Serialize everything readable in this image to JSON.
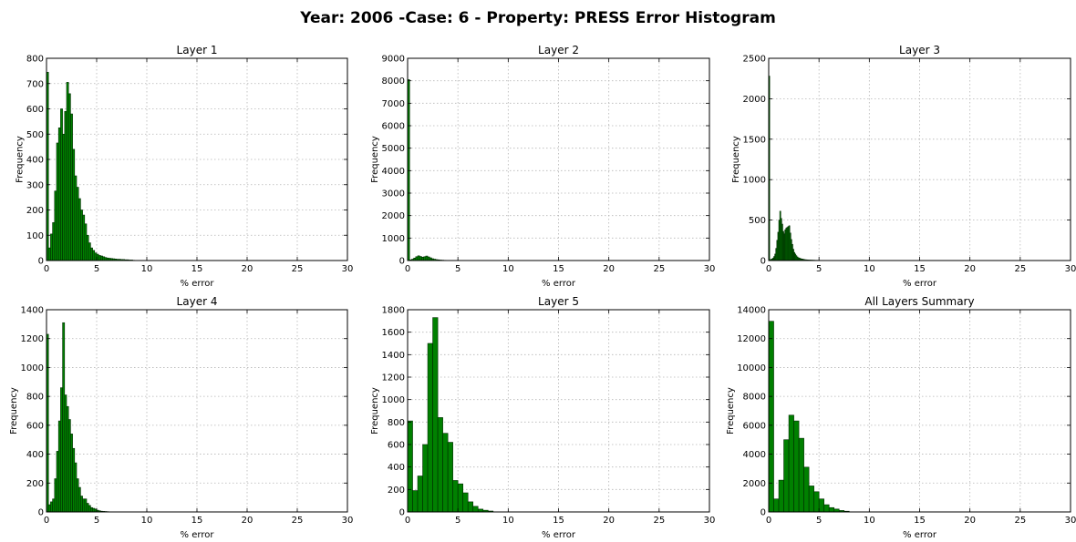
{
  "figure": {
    "suptitle": "Year: 2006 -Case: 6 - Property: PRESS Error Histogram"
  },
  "colors": {
    "bar_fill": "#008000",
    "bar_edge": "#002a00",
    "grid": "#b5b5b5",
    "frame": "#000000"
  },
  "chart_data": [
    {
      "type": "bar",
      "title": "Layer 1",
      "xlabel": "% error",
      "ylabel": "Frequency",
      "xlim": [
        0,
        30
      ],
      "ylim": [
        0,
        800
      ],
      "xticks": [
        0,
        5,
        10,
        15,
        20,
        25,
        30
      ],
      "yticks": [
        0,
        100,
        200,
        300,
        400,
        500,
        600,
        700,
        800
      ],
      "grid": true,
      "bin_width": 0.2,
      "x": [
        0.0,
        0.2,
        0.4,
        0.6,
        0.8,
        1.0,
        1.2,
        1.4,
        1.6,
        1.8,
        2.0,
        2.2,
        2.4,
        2.6,
        2.8,
        3.0,
        3.2,
        3.4,
        3.6,
        3.8,
        4.0,
        4.2,
        4.4,
        4.6,
        4.8,
        5.0,
        5.2,
        5.4,
        5.6,
        5.8,
        6.0,
        6.2,
        6.4,
        6.6,
        6.8,
        7.0,
        7.2,
        7.4,
        7.6,
        7.8,
        8.0,
        8.2,
        8.4,
        8.6
      ],
      "values": [
        745,
        50,
        105,
        150,
        275,
        465,
        525,
        600,
        500,
        590,
        705,
        660,
        580,
        440,
        335,
        290,
        245,
        200,
        180,
        145,
        100,
        70,
        50,
        40,
        30,
        25,
        20,
        18,
        15,
        12,
        10,
        9,
        8,
        7,
        6,
        5,
        5,
        4,
        4,
        3,
        3,
        2,
        2,
        1
      ]
    },
    {
      "type": "bar",
      "title": "Layer 2",
      "xlabel": "% error",
      "ylabel": "Frequency",
      "xlim": [
        0,
        30
      ],
      "ylim": [
        0,
        9000
      ],
      "xticks": [
        0,
        5,
        10,
        15,
        20,
        25,
        30
      ],
      "yticks": [
        0,
        1000,
        2000,
        3000,
        4000,
        5000,
        6000,
        7000,
        8000,
        9000
      ],
      "grid": true,
      "bin_width": 0.2,
      "x": [
        0.0,
        0.2,
        0.4,
        0.6,
        0.8,
        1.0,
        1.2,
        1.4,
        1.6,
        1.8,
        2.0,
        2.2,
        2.4,
        2.6,
        2.8,
        3.0,
        3.2,
        3.4,
        3.6,
        3.8
      ],
      "values": [
        8050,
        30,
        60,
        110,
        170,
        210,
        180,
        150,
        170,
        200,
        160,
        120,
        80,
        60,
        40,
        30,
        20,
        15,
        10,
        5
      ]
    },
    {
      "type": "bar",
      "title": "Layer 3",
      "xlabel": "% error",
      "ylabel": "Frequency",
      "xlim": [
        0,
        30
      ],
      "ylim": [
        0,
        2500
      ],
      "xticks": [
        0,
        5,
        10,
        15,
        20,
        25,
        30
      ],
      "yticks": [
        0,
        500,
        1000,
        1500,
        2000,
        2500
      ],
      "grid": true,
      "bin_width": 0.1,
      "x": [
        0.0,
        0.1,
        0.2,
        0.3,
        0.4,
        0.5,
        0.6,
        0.7,
        0.8,
        0.9,
        1.0,
        1.1,
        1.2,
        1.3,
        1.4,
        1.5,
        1.6,
        1.7,
        1.8,
        1.9,
        2.0,
        2.1,
        2.2,
        2.3,
        2.4,
        2.5,
        2.6,
        2.7,
        2.8,
        2.9,
        3.0,
        3.1,
        3.2,
        3.3,
        3.4,
        3.5,
        3.6,
        3.7,
        3.8,
        3.9,
        4.0,
        4.1,
        4.2,
        4.3,
        4.4,
        4.5,
        4.6,
        4.7,
        4.8,
        4.9,
        5.0,
        5.1,
        5.2,
        5.3,
        5.4,
        5.5,
        5.6,
        5.7,
        5.8,
        5.9
      ],
      "values": [
        2280,
        10,
        15,
        20,
        30,
        50,
        80,
        150,
        250,
        350,
        500,
        610,
        520,
        450,
        360,
        330,
        380,
        400,
        410,
        420,
        430,
        340,
        260,
        200,
        140,
        100,
        80,
        60,
        45,
        35,
        30,
        25,
        20,
        18,
        15,
        12,
        10,
        9,
        8,
        7,
        6,
        6,
        5,
        5,
        4,
        4,
        3,
        3,
        3,
        2,
        2,
        2,
        2,
        1,
        1,
        1,
        1,
        1,
        1,
        1
      ]
    },
    {
      "type": "bar",
      "title": "Layer 4",
      "xlabel": "% error",
      "ylabel": "Frequency",
      "xlim": [
        0,
        30
      ],
      "ylim": [
        0,
        1400
      ],
      "xticks": [
        0,
        5,
        10,
        15,
        20,
        25,
        30
      ],
      "yticks": [
        0,
        200,
        400,
        600,
        800,
        1000,
        1200,
        1400
      ],
      "grid": true,
      "bin_width": 0.2,
      "x": [
        0.0,
        0.2,
        0.4,
        0.6,
        0.8,
        1.0,
        1.2,
        1.4,
        1.6,
        1.8,
        2.0,
        2.2,
        2.4,
        2.6,
        2.8,
        3.0,
        3.2,
        3.4,
        3.6,
        3.8,
        4.0,
        4.2,
        4.4,
        4.6,
        4.8,
        5.0,
        5.2,
        5.4,
        5.6,
        5.8,
        6.0
      ],
      "values": [
        1230,
        50,
        70,
        90,
        230,
        420,
        630,
        860,
        1310,
        810,
        730,
        640,
        540,
        440,
        340,
        230,
        170,
        110,
        90,
        90,
        60,
        45,
        30,
        25,
        20,
        12,
        8,
        5,
        4,
        3,
        2
      ]
    },
    {
      "type": "bar",
      "title": "Layer 5",
      "xlabel": "% error",
      "ylabel": "Frequency",
      "xlim": [
        0,
        30
      ],
      "ylim": [
        0,
        1800
      ],
      "xticks": [
        0,
        5,
        10,
        15,
        20,
        25,
        30
      ],
      "yticks": [
        0,
        200,
        400,
        600,
        800,
        1000,
        1200,
        1400,
        1600,
        1800
      ],
      "grid": true,
      "bin_width": 0.5,
      "x": [
        0.0,
        0.5,
        1.0,
        1.5,
        2.0,
        2.5,
        3.0,
        3.5,
        4.0,
        4.5,
        5.0,
        5.5,
        6.0,
        6.5,
        7.0,
        7.5,
        8.0
      ],
      "values": [
        810,
        190,
        320,
        600,
        1500,
        1730,
        840,
        700,
        620,
        280,
        250,
        170,
        90,
        50,
        25,
        15,
        8
      ]
    },
    {
      "type": "bar",
      "title": "All Layers Summary",
      "xlabel": "% error",
      "ylabel": "Frequency",
      "xlim": [
        0,
        30
      ],
      "ylim": [
        0,
        14000
      ],
      "xticks": [
        0,
        5,
        10,
        15,
        20,
        25,
        30
      ],
      "yticks": [
        0,
        2000,
        4000,
        6000,
        8000,
        10000,
        12000,
        14000
      ],
      "grid": true,
      "bin_width": 0.5,
      "x": [
        0.0,
        0.5,
        1.0,
        1.5,
        2.0,
        2.5,
        3.0,
        3.5,
        4.0,
        4.5,
        5.0,
        5.5,
        6.0,
        6.5,
        7.0,
        7.5
      ],
      "values": [
        13200,
        900,
        2200,
        5000,
        6700,
        6300,
        5100,
        3100,
        1800,
        1400,
        900,
        500,
        300,
        200,
        100,
        50
      ]
    }
  ]
}
